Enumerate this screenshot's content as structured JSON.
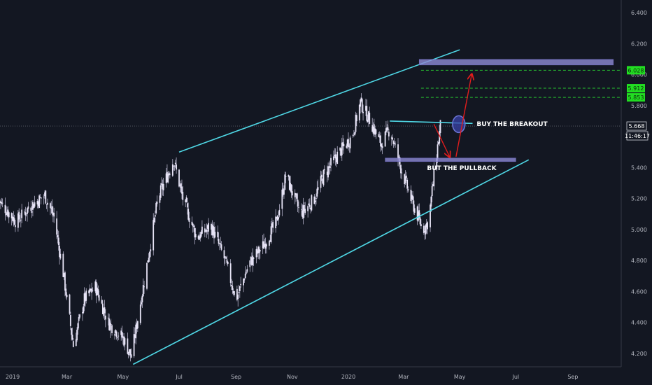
{
  "colors": {
    "background": "#131722",
    "candle_body": "#e6e3f5",
    "candle_wick": "#c9c6df",
    "channel": "#4fd8e6",
    "zone": "#8e8bd6",
    "arrow": "#e11d1d",
    "target_line": "#26c030",
    "target_badge": "#22dd22",
    "circle": "#3a43a8",
    "axis_text": "#b2b5be",
    "current_price_line": "#5d606b"
  },
  "chart_data": {
    "type": "candlestick",
    "title": "",
    "xlabel": "",
    "ylabel": "",
    "x_ticks": [
      "2019",
      "Mar",
      "May",
      "Jul",
      "Sep",
      "Nov",
      "2020",
      "Mar",
      "May",
      "Jul",
      "Sep"
    ],
    "y_ticks": [
      "6.400",
      "6.200",
      "6.000",
      "5.800",
      "5.600",
      "5.400",
      "5.200",
      "5.000",
      "4.800",
      "4.600",
      "4.400",
      "4.200"
    ],
    "ylim": [
      4.12,
      6.5
    ],
    "price_path": [
      {
        "x": "2018-12-15",
        "y": 5.2
      },
      {
        "x": "2019-01-05",
        "y": 5.05
      },
      {
        "x": "2019-01-20",
        "y": 5.15
      },
      {
        "x": "2019-02-05",
        "y": 5.22
      },
      {
        "x": "2019-02-15",
        "y": 5.08
      },
      {
        "x": "2019-02-25",
        "y": 4.72
      },
      {
        "x": "2019-03-08",
        "y": 4.25
      },
      {
        "x": "2019-03-20",
        "y": 4.55
      },
      {
        "x": "2019-04-01",
        "y": 4.63
      },
      {
        "x": "2019-04-15",
        "y": 4.4
      },
      {
        "x": "2019-05-01",
        "y": 4.3
      },
      {
        "x": "2019-05-10",
        "y": 4.18
      },
      {
        "x": "2019-05-25",
        "y": 4.7
      },
      {
        "x": "2019-06-08",
        "y": 5.2
      },
      {
        "x": "2019-06-25",
        "y": 5.45
      },
      {
        "x": "2019-07-05",
        "y": 5.2
      },
      {
        "x": "2019-07-20",
        "y": 4.95
      },
      {
        "x": "2019-08-05",
        "y": 5.02
      },
      {
        "x": "2019-08-20",
        "y": 4.8
      },
      {
        "x": "2019-09-01",
        "y": 4.55
      },
      {
        "x": "2019-09-15",
        "y": 4.78
      },
      {
        "x": "2019-10-01",
        "y": 4.9
      },
      {
        "x": "2019-10-15",
        "y": 5.05
      },
      {
        "x": "2019-10-25",
        "y": 5.35
      },
      {
        "x": "2019-11-10",
        "y": 5.1
      },
      {
        "x": "2019-11-25",
        "y": 5.2
      },
      {
        "x": "2019-12-05",
        "y": 5.35
      },
      {
        "x": "2019-12-20",
        "y": 5.48
      },
      {
        "x": "2020-01-05",
        "y": 5.6
      },
      {
        "x": "2020-01-14",
        "y": 5.82
      },
      {
        "x": "2020-01-25",
        "y": 5.7
      },
      {
        "x": "2020-02-05",
        "y": 5.55
      },
      {
        "x": "2020-02-15",
        "y": 5.65
      },
      {
        "x": "2020-02-28",
        "y": 5.38
      },
      {
        "x": "2020-03-10",
        "y": 5.18
      },
      {
        "x": "2020-03-22",
        "y": 5.0
      },
      {
        "x": "2020-03-28",
        "y": 5.05
      },
      {
        "x": "2020-04-05",
        "y": 5.45
      },
      {
        "x": "2020-04-10",
        "y": 5.668
      }
    ],
    "current_price": "5.668",
    "price_levels": [
      "6.028",
      "5.912",
      "5.853"
    ],
    "annotations": [
      "BUY THE BREAKOUT",
      "BUT THE PULLBACK"
    ],
    "channel_upper": [
      {
        "x": "2019-07-01",
        "y": 5.5
      },
      {
        "x": "2020-05-01",
        "y": 6.16
      }
    ],
    "channel_lower": [
      {
        "x": "2019-05-12",
        "y": 4.13
      },
      {
        "x": "2020-07-15",
        "y": 5.45
      }
    ],
    "resistance_line": [
      {
        "x": "2020-02-15",
        "y": 5.7
      },
      {
        "x": "2020-05-15",
        "y": 5.685
      }
    ],
    "zone_upper": [
      {
        "x": "2020-03-18",
        "y": 6.08
      },
      {
        "x": "2020-10-15",
        "y": 6.08
      }
    ],
    "zone_lower": [
      {
        "x": "2020-02-10",
        "y": 5.45
      },
      {
        "x": "2020-07-01",
        "y": 5.45
      }
    ],
    "breakout_circle": {
      "x": "2020-04-30",
      "y": 5.68
    },
    "grid": false
  },
  "axis": {
    "time_readout": "11:46:17"
  }
}
